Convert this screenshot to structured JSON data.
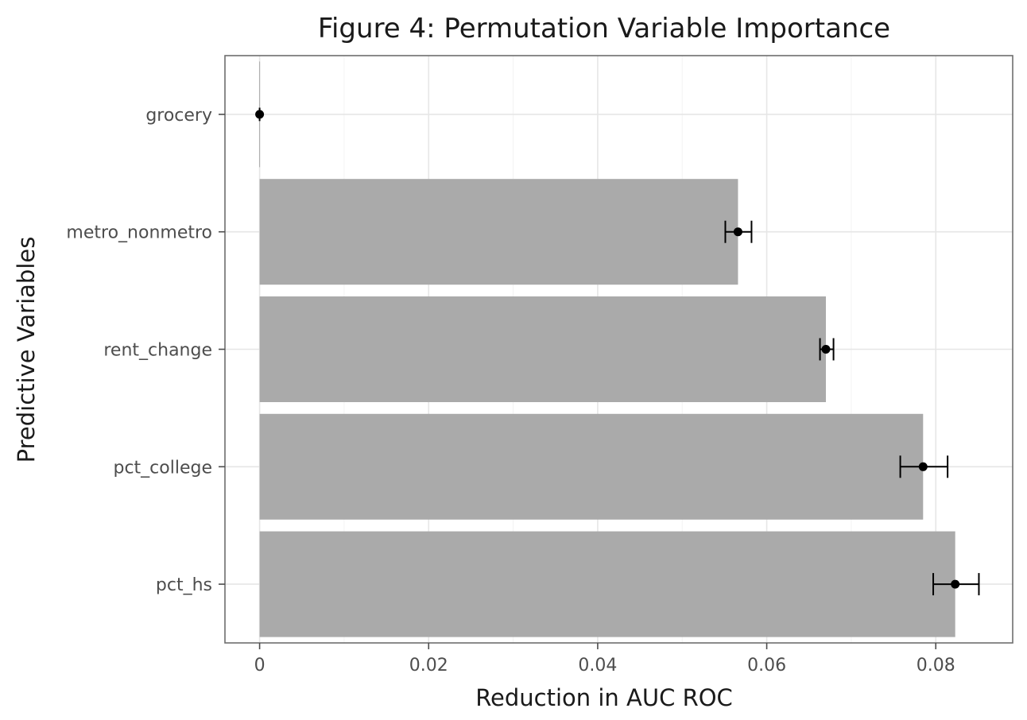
{
  "chart_data": {
    "type": "bar",
    "orientation": "horizontal",
    "title": "Figure 4: Permutation Variable Importance",
    "xlabel": "Reduction in AUC ROC",
    "ylabel": "Predictive Variables",
    "categories": [
      "grocery",
      "metro_nonmetro",
      "rent_change",
      "pct_college",
      "pct_hs"
    ],
    "values": [
      0.0,
      0.0566,
      0.067,
      0.0785,
      0.0823
    ],
    "error_low": [
      0.0,
      0.0551,
      0.0663,
      0.0758,
      0.0797
    ],
    "error_high": [
      0.0,
      0.0582,
      0.0679,
      0.0814,
      0.0851
    ],
    "xticks": [
      0,
      0.02,
      0.04,
      0.06,
      0.08
    ],
    "xtick_labels": [
      "0",
      "0.02",
      "0.04",
      "0.06",
      "0.08"
    ],
    "xlim": [
      -0.0041,
      0.0891
    ],
    "grid": true,
    "bar_color": "#aaaaaa",
    "point_color": "#000000"
  }
}
